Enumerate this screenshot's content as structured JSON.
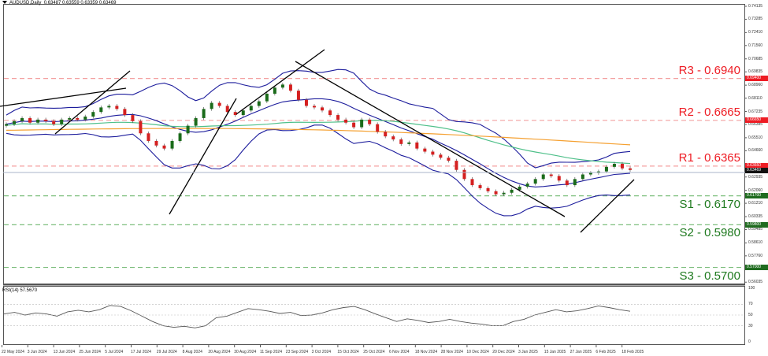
{
  "header": {
    "symbol_label": "AUDUSD,Daily",
    "ohlc": "0.63487 0.63559 0.63359 0.63469"
  },
  "rsi_header": {
    "label": "RSI(14) 57.5670"
  },
  "colors": {
    "resistance": "#ee1c24",
    "resistance_line": "#f4a0a0",
    "support": "#1f7a1f",
    "support_line": "#7fbf7f",
    "bullish": "#1a6b1a",
    "bearish": "#d42020",
    "bollinger": "#1c1c9c",
    "ma_green": "#4fc08a",
    "ma_orange": "#f5a030",
    "trendline": "#000000",
    "rsi_line": "#555555"
  },
  "levels": [
    {
      "name": "R3",
      "label": "R3 - 0.6940",
      "value": 0.694,
      "tag": "0.69400",
      "type": "resistance"
    },
    {
      "name": "R2",
      "label": "R2 - 0.6665",
      "value": 0.6665,
      "tag": "0.66650",
      "type": "resistance"
    },
    {
      "name": "R1",
      "label": "R1 - 0.6365",
      "value": 0.6365,
      "tag": "0.63650",
      "type": "resistance"
    },
    {
      "name": "S1",
      "label": "S1 - 0.6170",
      "value": 0.617,
      "tag": "0.61700",
      "type": "support"
    },
    {
      "name": "S2",
      "label": "S2 - 0.5980",
      "value": 0.598,
      "tag": "0.59800",
      "type": "support"
    },
    {
      "name": "S3",
      "label": "S3 - 0.5700",
      "value": 0.57,
      "tag": "0.57000",
      "type": "support"
    }
  ],
  "current_price_tag": "0.63469",
  "chart_data": {
    "type": "candlestick",
    "title": "AUDUSD,Daily",
    "price_axis_ticks": [
      "0.74135",
      "0.73285",
      "0.72410",
      "0.71560",
      "0.70685",
      "0.69835",
      "0.68960",
      "0.68110",
      "0.67235",
      "0.66385",
      "0.65510",
      "0.64660",
      "0.62935",
      "0.62060",
      "0.61210",
      "0.60335",
      "0.59485",
      "0.58610",
      "0.57760",
      "0.56035"
    ],
    "rsi_axis_ticks": [
      "100",
      "70",
      "50",
      "30",
      "0"
    ],
    "x_tick_labels": [
      "22 May 2024",
      "3 Jun 2024",
      "13 Jun 2024",
      "25 Jun 2024",
      "5 Jul 2024",
      "17 Jul 2024",
      "29 Jul 2024",
      "8 Aug 2024",
      "20 Aug 2024",
      "30 Aug 2024",
      "11 Sep 2024",
      "23 Sep 2024",
      "3 Oct 2024",
      "15 Oct 2024",
      "25 Oct 2024",
      "6 Nov 2024",
      "18 Nov 2024",
      "28 Nov 2024",
      "10 Dec 2024",
      "20 Dec 2024",
      "3 Jan 2025",
      "15 Jan 2025",
      "27 Jan 2025",
      "6 Feb 2025",
      "18 Feb 2025"
    ],
    "ylim": [
      0.56035,
      0.74135
    ],
    "close_path": [
      0.664,
      0.666,
      0.668,
      0.665,
      0.667,
      0.666,
      0.664,
      0.667,
      0.668,
      0.667,
      0.669,
      0.672,
      0.675,
      0.676,
      0.674,
      0.67,
      0.666,
      0.658,
      0.653,
      0.65,
      0.648,
      0.653,
      0.658,
      0.663,
      0.668,
      0.674,
      0.678,
      0.676,
      0.672,
      0.67,
      0.673,
      0.676,
      0.679,
      0.684,
      0.688,
      0.69,
      0.686,
      0.68,
      0.676,
      0.675,
      0.673,
      0.67,
      0.667,
      0.665,
      0.662,
      0.667,
      0.664,
      0.659,
      0.656,
      0.654,
      0.651,
      0.652,
      0.648,
      0.646,
      0.644,
      0.642,
      0.64,
      0.634,
      0.628,
      0.624,
      0.622,
      0.62,
      0.618,
      0.619,
      0.621,
      0.623,
      0.625,
      0.628,
      0.631,
      0.63,
      0.627,
      0.624,
      0.628,
      0.631,
      0.632,
      0.633,
      0.636,
      0.638,
      0.635,
      0.634
    ],
    "indicators": [
      "Bollinger Bands (upper/middle/lower)",
      "Moving Average (green)",
      "Moving Average (orange)",
      "RSI(14)"
    ],
    "rsi_last": 57.567,
    "rsi_values": [
      52,
      55,
      50,
      54,
      52,
      48,
      56,
      59,
      56,
      60,
      68,
      66,
      58,
      48,
      38,
      30,
      27,
      29,
      26,
      30,
      45,
      48,
      55,
      62,
      60,
      57,
      53,
      55,
      49,
      50,
      54,
      60,
      64,
      66,
      60,
      52,
      45,
      38,
      43,
      40,
      36,
      38,
      42,
      38,
      35,
      33,
      30,
      30,
      38,
      42,
      50,
      55,
      60,
      56,
      58,
      62,
      67,
      64,
      60,
      57
    ]
  }
}
